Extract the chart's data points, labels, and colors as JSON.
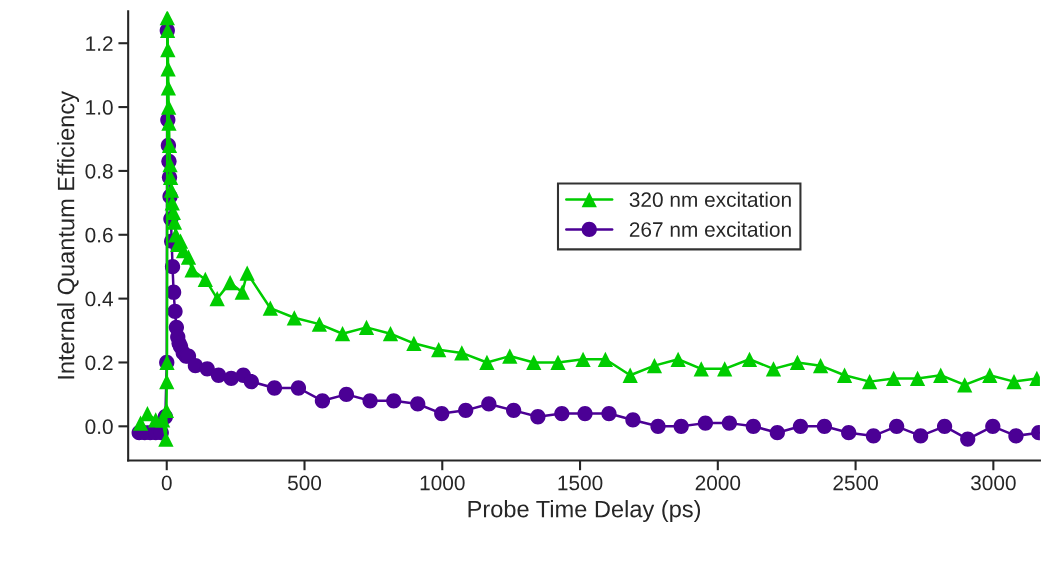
{
  "chart_data": {
    "type": "line",
    "xlabel": "Probe Time Delay (ps)",
    "ylabel": "Internal Quantum Efficiency",
    "xlim": [
      -140,
      3169
    ],
    "ylim": [
      -0.107,
      1.3
    ],
    "xticks": [
      0,
      500,
      1000,
      1500,
      2000,
      2500,
      3000
    ],
    "yticks": [
      {
        "value": 0,
        "label": "0.0"
      },
      0.2,
      0.4,
      0.6,
      0.8,
      {
        "value": 1,
        "label": "1.0"
      },
      1.2
    ],
    "grid": false,
    "legend": "right",
    "line_style": "solid",
    "series": [
      {
        "name": "320 nm excitation",
        "color": "#00cc00",
        "marker": "triangle",
        "x": [
          -95,
          -70,
          -40,
          -15,
          -3,
          -1,
          0,
          1,
          2,
          3,
          4,
          5,
          6,
          7,
          8,
          10,
          12,
          14,
          17,
          20,
          24,
          28,
          33,
          40,
          50,
          61,
          79,
          92,
          140,
          183,
          230,
          274,
          292,
          376,
          463,
          554,
          638,
          725,
          812,
          897,
          987,
          1071,
          1162,
          1245,
          1332,
          1420,
          1511,
          1592,
          1682,
          1770,
          1856,
          1940,
          2025,
          2115,
          2202,
          2289,
          2373,
          2460,
          2551,
          2638,
          2725,
          2809,
          2896,
          2987,
          3075,
          3158
        ],
        "values": [
          0.01,
          0.04,
          0.02,
          0.02,
          -0.04,
          0.05,
          0.14,
          0.2,
          1.28,
          1.24,
          1.18,
          1.12,
          1.06,
          1.0,
          0.95,
          0.88,
          0.82,
          0.78,
          0.74,
          0.7,
          0.67,
          0.64,
          0.6,
          0.57,
          0.58,
          0.55,
          0.53,
          0.49,
          0.46,
          0.4,
          0.45,
          0.42,
          0.48,
          0.37,
          0.34,
          0.32,
          0.29,
          0.31,
          0.29,
          0.26,
          0.24,
          0.23,
          0.2,
          0.22,
          0.2,
          0.2,
          0.21,
          0.21,
          0.16,
          0.19,
          0.21,
          0.18,
          0.18,
          0.21,
          0.18,
          0.2,
          0.19,
          0.16,
          0.14,
          0.15,
          0.15,
          0.16,
          0.13,
          0.16,
          0.14,
          0.15
        ]
      },
      {
        "name": "267 nm excitation",
        "color": "#4b0095",
        "marker": "circle",
        "x": [
          -100,
          -80,
          -60,
          -40,
          -20,
          -5,
          0,
          2,
          4,
          6,
          8,
          10,
          12,
          15,
          18,
          21,
          25,
          30,
          35,
          40,
          45,
          50,
          60,
          70,
          79,
          104,
          147,
          188,
          234,
          278,
          307,
          391,
          478,
          565,
          652,
          738,
          824,
          911,
          998,
          1085,
          1169,
          1259,
          1347,
          1434,
          1518,
          1605,
          1692,
          1783,
          1867,
          1955,
          2042,
          2129,
          2216,
          2300,
          2387,
          2475,
          2565,
          2649,
          2736,
          2823,
          2907,
          2998,
          3082,
          3165
        ],
        "values": [
          -0.02,
          -0.02,
          -0.02,
          -0.02,
          -0.02,
          0.03,
          0.2,
          1.24,
          0.96,
          0.88,
          0.83,
          0.78,
          0.72,
          0.65,
          0.58,
          0.5,
          0.42,
          0.36,
          0.31,
          0.28,
          0.26,
          0.25,
          0.23,
          0.22,
          0.22,
          0.19,
          0.18,
          0.16,
          0.15,
          0.16,
          0.14,
          0.12,
          0.12,
          0.08,
          0.1,
          0.08,
          0.08,
          0.07,
          0.04,
          0.05,
          0.07,
          0.05,
          0.03,
          0.04,
          0.04,
          0.04,
          0.02,
          0.0,
          0.0,
          0.01,
          0.01,
          0.0,
          -0.02,
          0.0,
          0.0,
          -0.02,
          -0.03,
          0.0,
          -0.03,
          0.0,
          -0.04,
          0.0,
          -0.03,
          -0.02
        ]
      }
    ]
  }
}
